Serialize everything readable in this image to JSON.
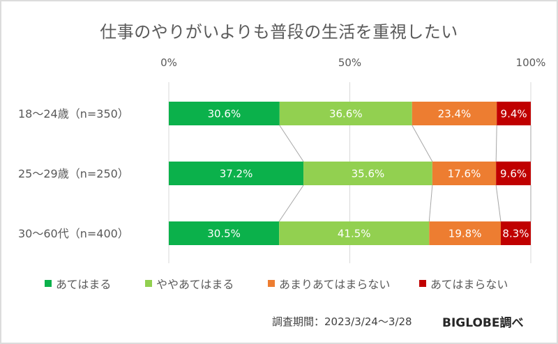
{
  "chart_data": {
    "type": "bar",
    "orientation": "horizontal",
    "stacked": "percent",
    "title": "仕事のやりがいよりも普段の生活を重視したい",
    "xlabel": "",
    "ylabel": "",
    "xlim": [
      0,
      100
    ],
    "x_ticks": [
      "0%",
      "50%",
      "100%"
    ],
    "grid": true,
    "legend_position": "bottom",
    "categories": [
      "18〜24歳（n=350）",
      "25〜29歳（n=250）",
      "30〜60代（n=400）"
    ],
    "series": [
      {
        "name": "あてはまる",
        "color": "#0BB14B",
        "values": [
          30.6,
          37.2,
          30.5
        ],
        "labels": [
          "30.6%",
          "37.2%",
          "30.5%"
        ]
      },
      {
        "name": "ややあてはまる",
        "color": "#92D050",
        "values": [
          36.6,
          35.6,
          41.5
        ],
        "labels": [
          "36.6%",
          "35.6%",
          "41.5%"
        ]
      },
      {
        "name": "あまりあてはまらない",
        "color": "#ED7D31",
        "values": [
          23.4,
          17.6,
          19.8
        ],
        "labels": [
          "23.4%",
          "17.6%",
          "19.8%"
        ]
      },
      {
        "name": "あてはまらない",
        "color": "#C00000",
        "values": [
          9.4,
          9.6,
          8.3
        ],
        "labels": [
          "9.4%",
          "9.6%",
          "8.3%"
        ]
      }
    ],
    "series_lines": true
  },
  "footer": {
    "period": "調査期間：2023/3/24〜3/28",
    "source": "BIGLOBE調べ"
  }
}
